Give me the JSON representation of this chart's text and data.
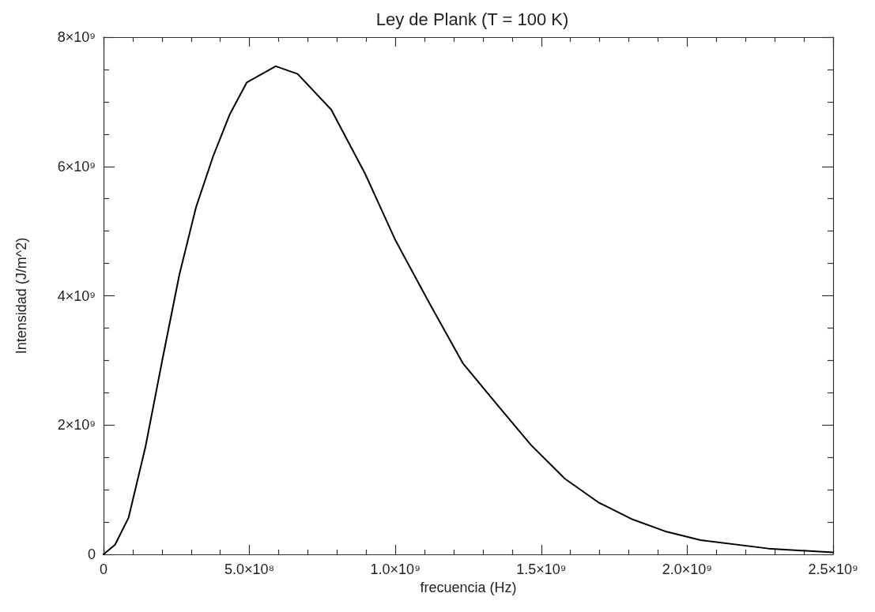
{
  "chart_data": {
    "type": "line",
    "title": "Ley de Plank (T = 100 K)",
    "xlabel": "frecuencia (Hz)",
    "ylabel": "Intensidad (J/m^2)",
    "x": [
      0,
      39500000,
      86000000,
      144000000,
      202000000,
      260000000,
      317000000,
      375000000,
      433000000,
      491000000,
      590000000,
      665000000,
      780000000,
      896000000,
      1000000000,
      1116000000,
      1232000000,
      1348000000,
      1465000000,
      1581000000,
      1697000000,
      1813000000,
      1929000000,
      2046000000,
      2278000000,
      2500000000
    ],
    "series": [
      {
        "color": "#000000",
        "values": [
          0,
          150000000,
          570000000,
          1670000000,
          3020000000,
          4330000000,
          5370000000,
          6150000000,
          6810000000,
          7300000000,
          7550000000,
          7430000000,
          6880000000,
          5890000000,
          4860000000,
          3890000000,
          2950000000,
          2320000000,
          1690000000,
          1170000000,
          800000000,
          540000000,
          350000000,
          220000000,
          90000000,
          30000000
        ]
      }
    ],
    "xlim": [
      0,
      2500000000
    ],
    "xticks": [
      0,
      {
        "value": 100000000,
        "label": null
      },
      {
        "value": 200000000,
        "label": null
      },
      {
        "value": 300000000,
        "label": null
      },
      {
        "value": 400000000,
        "label": null
      },
      {
        "value": 500000000,
        "label": "5.0×10⁸"
      },
      {
        "value": 600000000,
        "label": null
      },
      {
        "value": 700000000,
        "label": null
      },
      {
        "value": 800000000,
        "label": null
      },
      {
        "value": 900000000,
        "label": null
      },
      {
        "value": 1000000000,
        "label": "1.0×10⁹"
      },
      {
        "value": 1100000000,
        "label": null
      },
      {
        "value": 1200000000,
        "label": null
      },
      {
        "value": 1300000000,
        "label": null
      },
      {
        "value": 1400000000,
        "label": null
      },
      {
        "value": 1500000000,
        "label": "1.5×10⁹"
      },
      {
        "value": 1600000000,
        "label": null
      },
      {
        "value": 1700000000,
        "label": null
      },
      {
        "value": 1800000000,
        "label": null
      },
      {
        "value": 1900000000,
        "label": null
      },
      {
        "value": 2000000000,
        "label": "2.0×10⁹"
      },
      {
        "value": 2100000000,
        "label": null
      },
      {
        "value": 2200000000,
        "label": null
      },
      {
        "value": 2300000000,
        "label": null
      },
      {
        "value": 2400000000,
        "label": null
      },
      {
        "value": 2500000000,
        "label": "2.5×10⁹"
      }
    ],
    "ylim": [
      0,
      8000000000
    ],
    "yticks": [
      0,
      {
        "value": 500000000,
        "label": null
      },
      {
        "value": 1000000000,
        "label": null
      },
      {
        "value": 1500000000,
        "label": null
      },
      {
        "value": 2000000000,
        "label": "2×10⁹"
      },
      {
        "value": 2500000000,
        "label": null
      },
      {
        "value": 3000000000,
        "label": null
      },
      {
        "value": 3500000000,
        "label": null
      },
      {
        "value": 4000000000,
        "label": "4×10⁹"
      },
      {
        "value": 4500000000,
        "label": null
      },
      {
        "value": 5000000000,
        "label": null
      },
      {
        "value": 5500000000,
        "label": null
      },
      {
        "value": 6000000000,
        "label": "6×10⁹"
      },
      {
        "value": 6500000000,
        "label": null
      },
      {
        "value": 7000000000,
        "label": null
      },
      {
        "value": 7500000000,
        "label": null
      },
      {
        "value": 8000000000,
        "label": "8×10⁹"
      }
    ],
    "grid": false,
    "marker": "none",
    "line_style": "solid"
  }
}
